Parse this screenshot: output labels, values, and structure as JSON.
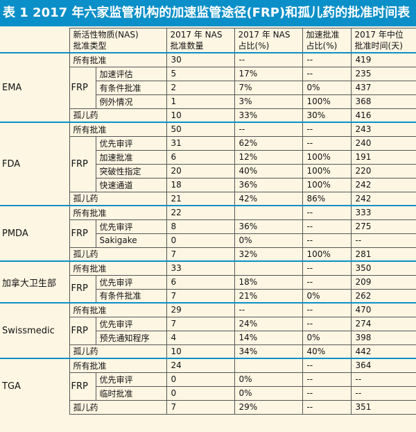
{
  "title": "表 1 2017 年六家监管机构的加速监管途径(FRP)和孤儿药的批准时间表",
  "headers": {
    "type": [
      "新活性物质(NAS)",
      "批准类型"
    ],
    "count": [
      "2017 年 NAS",
      "批准数量"
    ],
    "share": [
      "2017 年 NAS",
      "占比(%)"
    ],
    "accel": [
      "加速批准",
      "占比(%)"
    ],
    "median": [
      "2017 年中位",
      "批准时间(天)"
    ]
  },
  "frp_label": "FRP",
  "agencies": [
    {
      "name": "EMA",
      "rows": [
        {
          "label": "所有批准",
          "frp": false,
          "count": "30",
          "share": "--",
          "accel": "--",
          "median": "419"
        },
        {
          "label": "加速评估",
          "frp": true,
          "count": "5",
          "share": "17%",
          "accel": "--",
          "median": "235"
        },
        {
          "label": "有条件批准",
          "frp": true,
          "count": "2",
          "share": "7%",
          "accel": "0%",
          "median": "437"
        },
        {
          "label": "例外情况",
          "frp": true,
          "count": "1",
          "share": "3%",
          "accel": "100%",
          "median": "368"
        },
        {
          "label": "孤儿药",
          "frp": false,
          "count": "10",
          "share": "33%",
          "accel": "30%",
          "median": "416"
        }
      ]
    },
    {
      "name": "FDA",
      "rows": [
        {
          "label": "所有批准",
          "frp": false,
          "count": "50",
          "share": "--",
          "accel": "--",
          "median": "243"
        },
        {
          "label": "优先审评",
          "frp": true,
          "count": "31",
          "share": "62%",
          "accel": "--",
          "median": "240"
        },
        {
          "label": "加速批准",
          "frp": true,
          "count": "6",
          "share": "12%",
          "accel": "100%",
          "median": "191"
        },
        {
          "label": "突破性指定",
          "frp": true,
          "count": "20",
          "share": "40%",
          "accel": "100%",
          "median": "220"
        },
        {
          "label": "快速通道",
          "frp": true,
          "count": "18",
          "share": "36%",
          "accel": "100%",
          "median": "242"
        },
        {
          "label": "孤儿药",
          "frp": false,
          "count": "21",
          "share": "42%",
          "accel": "86%",
          "median": "242"
        }
      ]
    },
    {
      "name": "PMDA",
      "rows": [
        {
          "label": "所有批准",
          "frp": false,
          "count": "22",
          "share": "",
          "accel": "--",
          "median": "333"
        },
        {
          "label": "优先审评",
          "frp": true,
          "count": "8",
          "share": "36%",
          "accel": "--",
          "median": "275"
        },
        {
          "label": "Sakigake",
          "frp": true,
          "count": "0",
          "share": "0%",
          "accel": "--",
          "median": "--"
        },
        {
          "label": "孤儿药",
          "frp": false,
          "count": "7",
          "share": "32%",
          "accel": "100%",
          "median": "281"
        }
      ]
    },
    {
      "name": "加拿大卫生部",
      "rows": [
        {
          "label": "所有批准",
          "frp": false,
          "count": "33",
          "share": "",
          "accel": "--",
          "median": "350"
        },
        {
          "label": "优先审评",
          "frp": true,
          "count": "6",
          "share": "18%",
          "accel": "--",
          "median": "209"
        },
        {
          "label": "有条件批准",
          "frp": true,
          "count": "7",
          "share": "21%",
          "accel": "0%",
          "median": "262"
        }
      ]
    },
    {
      "name": "Swissmedic",
      "rows": [
        {
          "label": "所有批准",
          "frp": false,
          "count": "29",
          "share": "--",
          "accel": "--",
          "median": "470"
        },
        {
          "label": "优先审评",
          "frp": true,
          "count": "7",
          "share": "24%",
          "accel": "--",
          "median": "274"
        },
        {
          "label": "预先通知程序",
          "frp": true,
          "count": "4",
          "share": "14%",
          "accel": "0%",
          "median": "398"
        },
        {
          "label": "孤儿药",
          "frp": false,
          "count": "10",
          "share": "34%",
          "accel": "40%",
          "median": "442"
        }
      ]
    },
    {
      "name": "TGA",
      "rows": [
        {
          "label": "所有批准",
          "frp": false,
          "count": "24",
          "share": "",
          "accel": "--",
          "median": "364"
        },
        {
          "label": "优先审评",
          "frp": true,
          "count": "0",
          "share": "0%",
          "accel": "--",
          "median": "--"
        },
        {
          "label": "临时批准",
          "frp": true,
          "count": "0",
          "share": "0%",
          "accel": "--",
          "median": "--"
        },
        {
          "label": "孤儿药",
          "frp": false,
          "count": "7",
          "share": "29%",
          "accel": "--",
          "median": "351"
        }
      ]
    }
  ]
}
